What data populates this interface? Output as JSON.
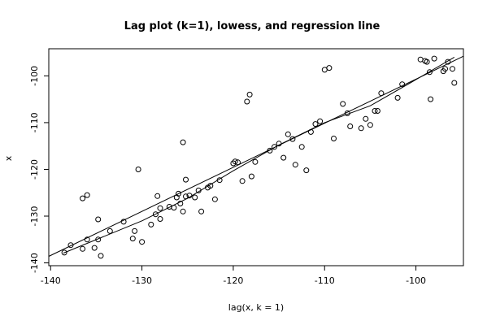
{
  "chart_data": {
    "type": "scatter",
    "title": "Lag plot (k=1), lowess, and regression line",
    "xlabel": "lag(x, k = 1)",
    "ylabel": "x",
    "xlim": [
      -140.2,
      -94.8
    ],
    "ylim": [
      -140.6,
      -94.2
    ],
    "x_ticks": [
      -140,
      -130,
      -120,
      -110,
      -100
    ],
    "y_ticks": [
      -140,
      -130,
      -120,
      -110,
      -100
    ],
    "grid": false,
    "marker": "open-circle",
    "points": [
      [
        -138.5,
        -137.8
      ],
      [
        -137.8,
        -136.2
      ],
      [
        -136.5,
        -137.0
      ],
      [
        -136.0,
        -135.0
      ],
      [
        -135.2,
        -136.8
      ],
      [
        -134.8,
        -135.0
      ],
      [
        -134.5,
        -138.5
      ],
      [
        -133.5,
        -133.2
      ],
      [
        -132.0,
        -131.2
      ],
      [
        -131.0,
        -134.8
      ],
      [
        -130.8,
        -133.2
      ],
      [
        -130.0,
        -135.5
      ],
      [
        -129.0,
        -131.8
      ],
      [
        -128.5,
        -129.6
      ],
      [
        -128.3,
        -125.7
      ],
      [
        -128.0,
        -130.6
      ],
      [
        -128.0,
        -128.3
      ],
      [
        -127.0,
        -128.0
      ],
      [
        -126.5,
        -128.2
      ],
      [
        -126.2,
        -126.0
      ],
      [
        -126.0,
        -125.2
      ],
      [
        -125.8,
        -127.3
      ],
      [
        -125.5,
        -129.0
      ],
      [
        -125.2,
        -125.8
      ],
      [
        -124.8,
        -125.6
      ],
      [
        -124.2,
        -126.0
      ],
      [
        -123.8,
        -124.5
      ],
      [
        -123.5,
        -129.0
      ],
      [
        -122.8,
        -123.9
      ],
      [
        -122.0,
        -126.4
      ],
      [
        -121.5,
        -122.3
      ],
      [
        -130.4,
        -120.0
      ],
      [
        -125.5,
        -114.2
      ],
      [
        -125.2,
        -122.2
      ],
      [
        -136.5,
        -126.2
      ],
      [
        -136.0,
        -125.5
      ],
      [
        -134.8,
        -130.7
      ],
      [
        -122.5,
        -123.5
      ],
      [
        -120.0,
        -118.7
      ],
      [
        -119.8,
        -118.3
      ],
      [
        -119.5,
        -118.5
      ],
      [
        -119.0,
        -122.5
      ],
      [
        -118.5,
        -105.5
      ],
      [
        -118.2,
        -104.0
      ],
      [
        -118.0,
        -121.5
      ],
      [
        -117.6,
        -118.4
      ],
      [
        -116.0,
        -116.0
      ],
      [
        -115.5,
        -115.2
      ],
      [
        -115.0,
        -114.5
      ],
      [
        -114.5,
        -117.5
      ],
      [
        -114.0,
        -112.5
      ],
      [
        -113.5,
        -113.5
      ],
      [
        -113.2,
        -119.0
      ],
      [
        -112.5,
        -115.2
      ],
      [
        -112.0,
        -120.2
      ],
      [
        -111.5,
        -112.0
      ],
      [
        -111.0,
        -110.3
      ],
      [
        -110.5,
        -109.7
      ],
      [
        -110.0,
        -98.7
      ],
      [
        -109.5,
        -98.3
      ],
      [
        -109.0,
        -113.4
      ],
      [
        -108.0,
        -106.0
      ],
      [
        -107.5,
        -108.0
      ],
      [
        -107.2,
        -110.8
      ],
      [
        -106.0,
        -111.2
      ],
      [
        -105.5,
        -109.2
      ],
      [
        -105.0,
        -110.5
      ],
      [
        -104.5,
        -107.5
      ],
      [
        -104.2,
        -107.5
      ],
      [
        -103.8,
        -103.7
      ],
      [
        -102.0,
        -104.7
      ],
      [
        -101.5,
        -101.8
      ],
      [
        -99.5,
        -96.5
      ],
      [
        -99.0,
        -96.8
      ],
      [
        -98.8,
        -97.0
      ],
      [
        -98.5,
        -99.2
      ],
      [
        -98.4,
        -105.0
      ],
      [
        -98.0,
        -96.3
      ],
      [
        -97.0,
        -99.0
      ],
      [
        -96.8,
        -98.5
      ],
      [
        -96.5,
        -97.0
      ],
      [
        -96.0,
        -98.5
      ],
      [
        -95.8,
        -101.5
      ]
    ],
    "lines": [
      {
        "name": "lowess",
        "points": [
          [
            -138.6,
            -137.9
          ],
          [
            -130.0,
            -131.0
          ],
          [
            -125.0,
            -126.2
          ],
          [
            -120.0,
            -120.3
          ],
          [
            -115.0,
            -114.8
          ],
          [
            -110.0,
            -110.0
          ],
          [
            -105.0,
            -106.4
          ],
          [
            -100.0,
            -100.8
          ],
          [
            -95.8,
            -96.0
          ]
        ]
      },
      {
        "name": "regression",
        "points": [
          [
            -140.2,
            -138.6
          ],
          [
            -94.8,
            -95.8
          ]
        ]
      }
    ]
  }
}
